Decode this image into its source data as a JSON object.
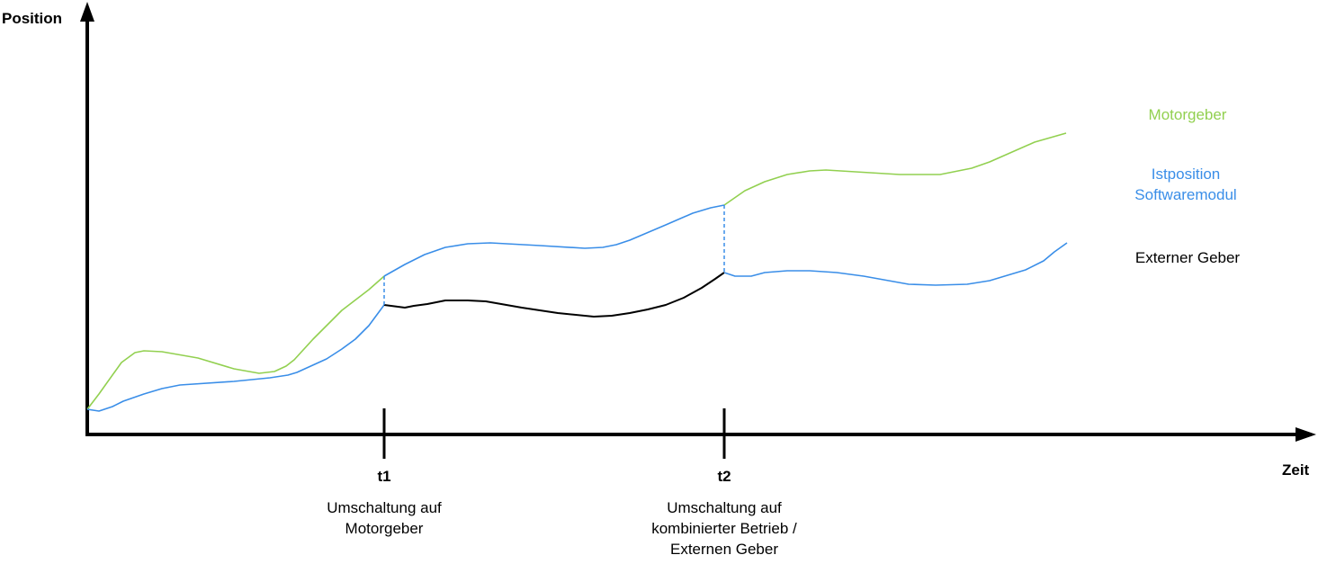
{
  "axes": {
    "y_label": "Position",
    "x_label": "Zeit"
  },
  "markers": [
    {
      "label": "t1",
      "caption": [
        "Umschaltung auf",
        "Motorgeber"
      ]
    },
    {
      "label": "t2",
      "caption": [
        "Umschaltung auf",
        "kombinierter Betrieb /",
        "Externen Geber"
      ]
    }
  ],
  "legend": {
    "motor": {
      "label": "Motorgeber",
      "color": "#92d050"
    },
    "ist": {
      "label": [
        "Istposition",
        "Softwaremodul"
      ],
      "color": "#3a8ee8"
    },
    "extern": {
      "label": "Externer Geber",
      "color": "#000000"
    }
  }
}
